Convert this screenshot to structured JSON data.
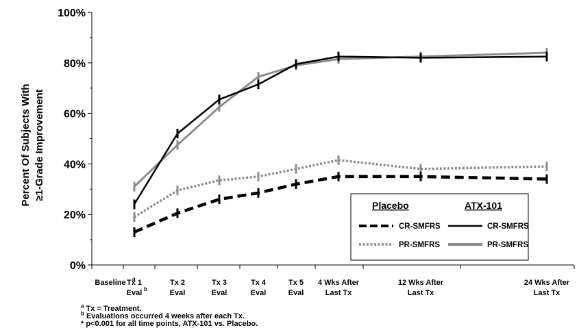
{
  "chart_data": {
    "type": "line",
    "ylabel_line1": "Percent Of Subjects With",
    "ylabel_line2": "≥1-Grade Improvement",
    "ylim": [
      0,
      100
    ],
    "yticks": [
      "0%",
      "20%",
      "40%",
      "60%",
      "80%",
      "100%"
    ],
    "x_categories": [
      {
        "line1": "Baseline",
        "line2": ""
      },
      {
        "line1": "Tx 1",
        "line2": "Eval"
      },
      {
        "line1": "Tx 2",
        "line2": "Eval"
      },
      {
        "line1": "Tx 3",
        "line2": "Eval"
      },
      {
        "line1": "Tx 4",
        "line2": "Eval"
      },
      {
        "line1": "Tx 5",
        "line2": "Eval"
      },
      {
        "line1": "4 Wks After",
        "line2": "Last Tx"
      },
      {
        "line1": "12 Wks After",
        "line2": "Last Tx"
      },
      {
        "line1": "24 Wks After",
        "line2": "Last Tx"
      }
    ],
    "x_superscripts": {
      "tx1": "a",
      "eval1": "b"
    },
    "grid": false,
    "legend_position": "bottom-right",
    "legend": {
      "placebo_header": "Placebo",
      "atx_header": "ATX-101",
      "placebo_cr": "CR-SMFRS",
      "placebo_pr": "PR-SMFRS",
      "atx_cr": "CR-SMFRS",
      "atx_pr": "PR-SMFRS"
    },
    "series": [
      {
        "group": "Placebo",
        "measure": "CR-SMFRS",
        "color": "#000000",
        "style": "dashed",
        "x": [
          "Tx 1 Eval",
          "Tx 2 Eval",
          "Tx 3 Eval",
          "Tx 4 Eval",
          "Tx 5 Eval",
          "4 Wks After Last Tx",
          "12 Wks After Last Tx",
          "24 Wks After Last Tx"
        ],
        "values": [
          13,
          20.5,
          26,
          28.5,
          32,
          35,
          35,
          34
        ]
      },
      {
        "group": "Placebo",
        "measure": "PR-SMFRS",
        "color": "#8c8c8c",
        "style": "dotted",
        "x": [
          "Tx 1 Eval",
          "Tx 2 Eval",
          "Tx 3 Eval",
          "Tx 4 Eval",
          "Tx 5 Eval",
          "4 Wks After Last Tx",
          "12 Wks After Last Tx",
          "24 Wks After Last Tx"
        ],
        "values": [
          19,
          29.5,
          33.5,
          35,
          38,
          41.5,
          38,
          39
        ]
      },
      {
        "group": "ATX-101",
        "measure": "CR-SMFRS",
        "color": "#000000",
        "style": "solid",
        "x": [
          "Tx 1 Eval",
          "Tx 2 Eval",
          "Tx 3 Eval",
          "Tx 4 Eval",
          "Tx 5 Eval",
          "4 Wks After Last Tx",
          "12 Wks After Last Tx",
          "24 Wks After Last Tx"
        ],
        "values": [
          24,
          52,
          65.5,
          71.5,
          79.5,
          82.5,
          82,
          82.5
        ]
      },
      {
        "group": "ATX-101",
        "measure": "PR-SMFRS",
        "color": "#8c8c8c",
        "style": "solid",
        "x": [
          "Tx 1 Eval",
          "Tx 2 Eval",
          "Tx 3 Eval",
          "Tx 4 Eval",
          "Tx 5 Eval",
          "4 Wks After Last Tx",
          "12 Wks After Last Tx",
          "24 Wks After Last Tx"
        ],
        "values": [
          31,
          47.5,
          62.5,
          74.5,
          79,
          81.5,
          82.5,
          84
        ]
      }
    ]
  },
  "footnotes": {
    "a_mark": "a",
    "a_text": "Tx = Treatment.",
    "b_mark": "b",
    "b_text": "Evaluations occurred 4 weeks after each Tx.",
    "star_text": "* p<0.001 for all time points, ATX-101 vs. Placebo."
  }
}
